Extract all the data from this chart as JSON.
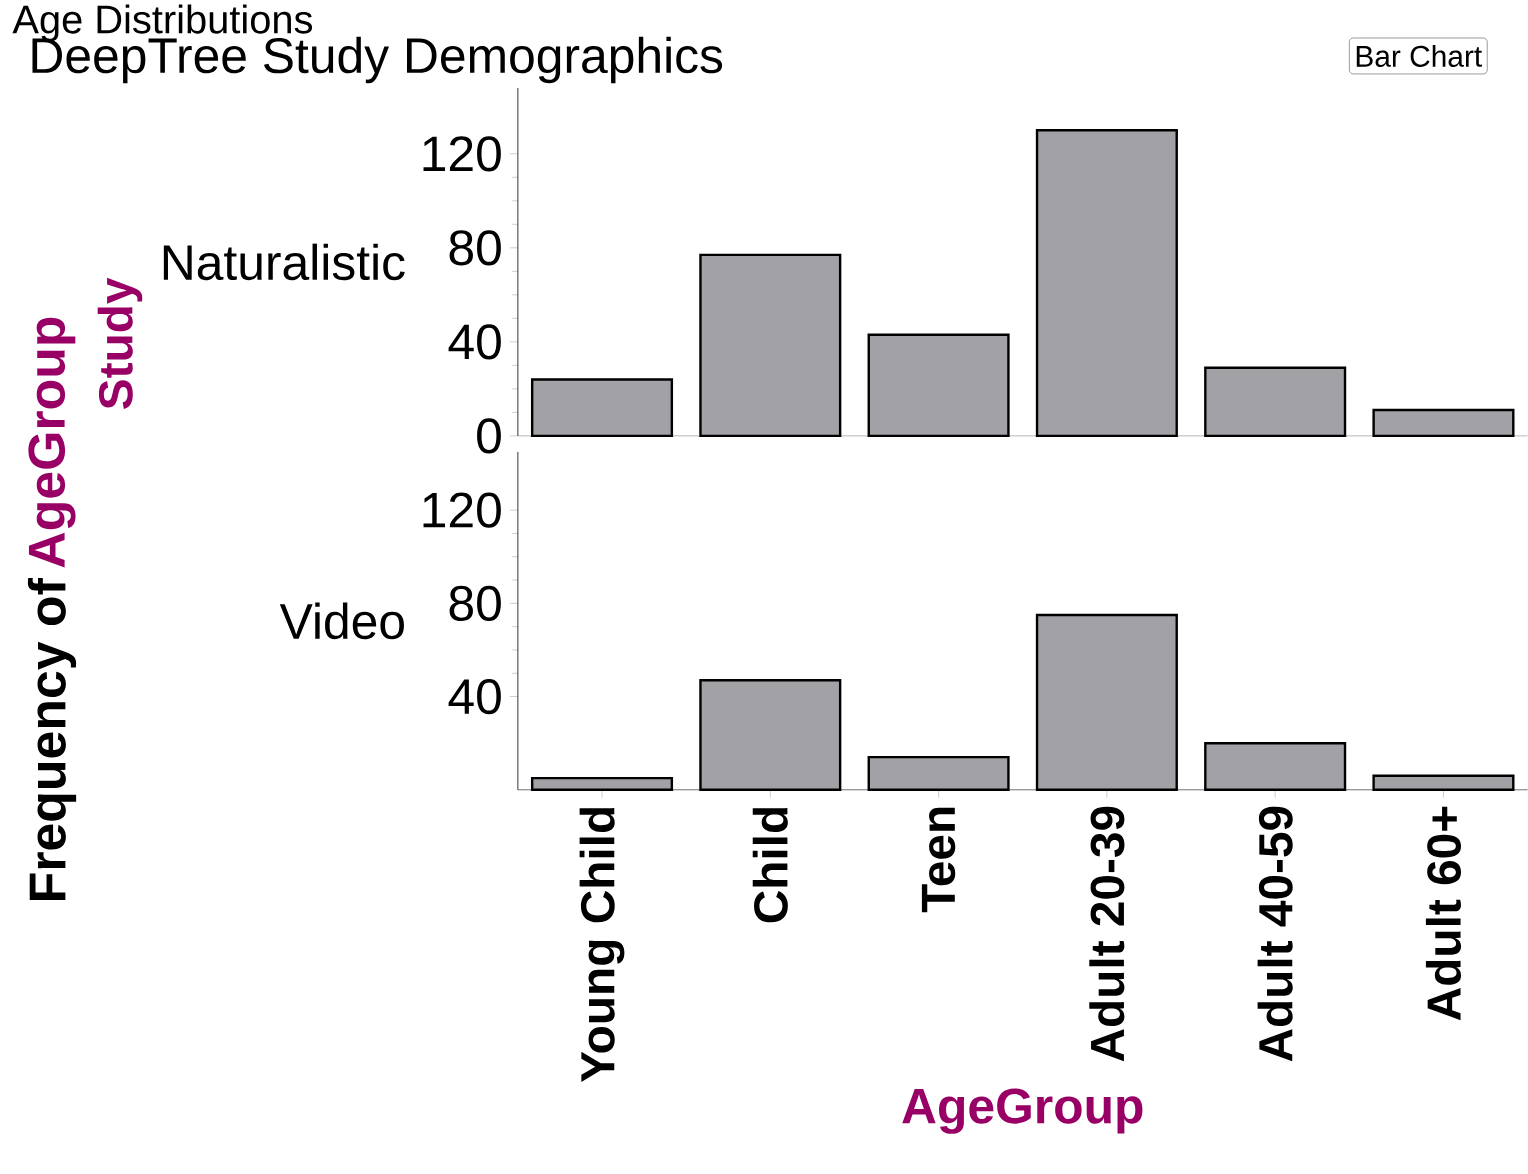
{
  "chart_data": [
    {
      "type": "bar",
      "title": "Age Distributions",
      "subtitle": "DeepTree Study Demographics",
      "ylabel": "Naturalistic",
      "annotations": [
        "Bar Chart",
        "Frequency of",
        "AgeGroup",
        "Study"
      ],
      "categories": [
        null,
        null,
        null,
        null,
        null,
        null
      ],
      "values": [
        24,
        77,
        43,
        130,
        29,
        11
      ],
      "color": "#a2a1a6",
      "ylim": [
        0,
        148
      ],
      "yticks": [
        0,
        40,
        80,
        120
      ],
      "tick_labels": "y"
    },
    {
      "type": "bar",
      "ylabel": "Video",
      "xlabel": "AgeGroup",
      "categories": [
        "Young Child",
        "Child",
        "Teen",
        "Adult 20-39",
        "Adult 40-59",
        "Adult 60+"
      ],
      "values": [
        5,
        47,
        14,
        75,
        20,
        6
      ],
      "color": "#a2a1a6",
      "ylim": [
        0,
        145
      ],
      "yticks": [
        40,
        80,
        120
      ]
    }
  ]
}
